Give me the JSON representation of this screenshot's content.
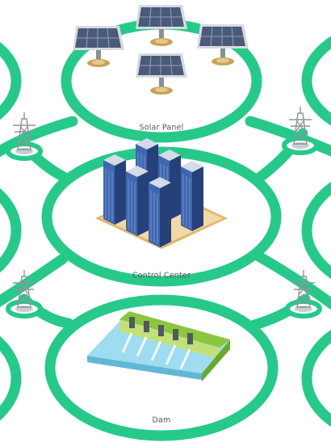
{
  "nodes": [
    {
      "label": "Solar Panel"
    },
    {
      "label": "Control Center"
    },
    {
      "label": "Dam"
    }
  ]
}
